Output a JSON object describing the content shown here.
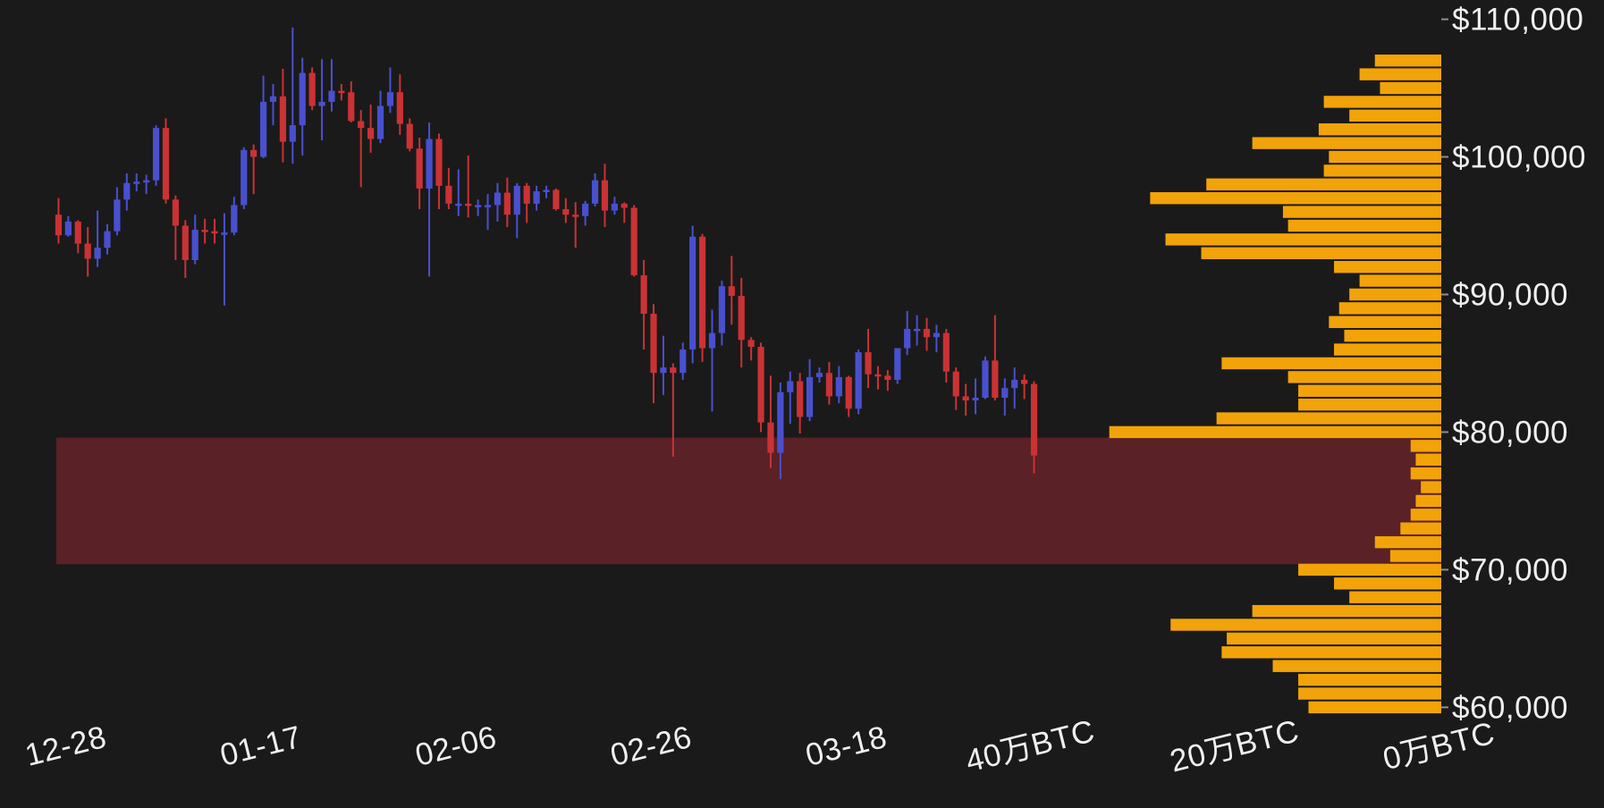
{
  "page": {
    "background": "#1a1a1a"
  },
  "chart_data": [
    {
      "type": "candlestick",
      "name": "BTC daily price candles",
      "columns": [
        "date",
        "open",
        "high",
        "low",
        "close"
      ],
      "up_color": "#4950cf",
      "down_color": "#cb3234",
      "y_axis": {
        "side": "right",
        "tick_labels": [
          "$110,000",
          "$100,000",
          "$90,000",
          "$80,000",
          "$70,000",
          "$60,000"
        ],
        "tick_values": [
          110000,
          100000,
          90000,
          80000,
          70000,
          60000
        ],
        "range": [
          59700,
          111400
        ]
      },
      "x_ticks": [
        {
          "index": 1,
          "label": "12-28"
        },
        {
          "index": 21,
          "label": "01-17"
        },
        {
          "index": 41,
          "label": "02-06"
        },
        {
          "index": 61,
          "label": "02-26"
        },
        {
          "index": 81,
          "label": "03-18"
        }
      ],
      "highlight_zone": {
        "price_from": 70400,
        "price_to": 79600,
        "color": "#5a2126"
      },
      "candles": [
        [
          "12-27",
          95800,
          97000,
          93700,
          94300
        ],
        [
          "12-28",
          94300,
          95700,
          94200,
          95300
        ],
        [
          "12-29",
          95300,
          95400,
          93000,
          93700
        ],
        [
          "12-30",
          93700,
          94900,
          91300,
          92600
        ],
        [
          "12-31",
          92600,
          96100,
          92000,
          93400
        ],
        [
          "01-01",
          93400,
          95100,
          92900,
          94600
        ],
        [
          "01-02",
          94600,
          97800,
          94300,
          96900
        ],
        [
          "01-03",
          96900,
          98800,
          96100,
          98100
        ],
        [
          "01-04",
          98100,
          98800,
          97500,
          98200
        ],
        [
          "01-05",
          98200,
          98700,
          97300,
          98300
        ],
        [
          "01-06",
          98300,
          102300,
          97900,
          102100
        ],
        [
          "01-07",
          102100,
          102800,
          96600,
          96900
        ],
        [
          "01-08",
          96900,
          97200,
          92500,
          95000
        ],
        [
          "01-09",
          95000,
          95400,
          91200,
          92500
        ],
        [
          "01-10",
          92500,
          95800,
          92200,
          94700
        ],
        [
          "01-11",
          94700,
          95500,
          93700,
          94600
        ],
        [
          "01-12",
          94600,
          95500,
          93700,
          94500
        ],
        [
          "01-13",
          94500,
          95900,
          89200,
          94500
        ],
        [
          "01-14",
          94500,
          97100,
          94300,
          96500
        ],
        [
          "01-15",
          96500,
          100700,
          96200,
          100500
        ],
        [
          "01-16",
          100500,
          100900,
          97300,
          100000
        ],
        [
          "01-17",
          100000,
          105900,
          99900,
          104000
        ],
        [
          "01-18",
          104000,
          105300,
          102300,
          104400
        ],
        [
          "01-19",
          104400,
          106400,
          99600,
          101100
        ],
        [
          "01-20",
          101100,
          109400,
          99500,
          102300
        ],
        [
          "01-21",
          102300,
          107200,
          100100,
          106100
        ],
        [
          "01-22",
          106100,
          106500,
          103400,
          103700
        ],
        [
          "01-23",
          103700,
          107100,
          101200,
          104000
        ],
        [
          "01-24",
          104000,
          107100,
          103300,
          104800
        ],
        [
          "01-25",
          104800,
          105300,
          104100,
          104700
        ],
        [
          "01-26",
          104700,
          105500,
          102500,
          102600
        ],
        [
          "01-27",
          102600,
          103400,
          97800,
          102100
        ],
        [
          "01-28",
          102100,
          103800,
          100300,
          101300
        ],
        [
          "01-29",
          101300,
          104800,
          101000,
          103700
        ],
        [
          "01-30",
          103700,
          106500,
          103200,
          104700
        ],
        [
          "01-31",
          104700,
          106000,
          101600,
          102400
        ],
        [
          "02-01",
          102400,
          102800,
          100400,
          100600
        ],
        [
          "02-02",
          100600,
          101400,
          96200,
          97700
        ],
        [
          "02-03",
          97700,
          102500,
          91300,
          101300
        ],
        [
          "02-04",
          101300,
          101700,
          96200,
          97900
        ],
        [
          "02-05",
          97900,
          99200,
          96200,
          96600
        ],
        [
          "02-06",
          96600,
          99100,
          95700,
          96600
        ],
        [
          "02-07",
          96600,
          100100,
          95600,
          96500
        ],
        [
          "02-08",
          96500,
          96900,
          95700,
          96500
        ],
        [
          "02-09",
          96500,
          97300,
          94700,
          96500
        ],
        [
          "02-10",
          96500,
          98100,
          95300,
          97400
        ],
        [
          "02-11",
          97400,
          98500,
          94900,
          95800
        ],
        [
          "02-12",
          95800,
          98100,
          94100,
          97900
        ],
        [
          "02-13",
          97900,
          98100,
          95200,
          96600
        ],
        [
          "02-14",
          96600,
          97900,
          96100,
          97500
        ],
        [
          "02-15",
          97500,
          97900,
          97000,
          97600
        ],
        [
          "02-16",
          97600,
          97700,
          96100,
          96200
        ],
        [
          "02-17",
          96200,
          97000,
          95200,
          95800
        ],
        [
          "02-18",
          95800,
          96700,
          93400,
          95700
        ],
        [
          "02-19",
          95700,
          96800,
          95000,
          96600
        ],
        [
          "02-20",
          96600,
          98800,
          96400,
          98300
        ],
        [
          "02-21",
          98300,
          99500,
          94900,
          96100
        ],
        [
          "02-22",
          96100,
          97100,
          95800,
          96600
        ],
        [
          "02-23",
          96600,
          96700,
          95200,
          96300
        ],
        [
          "02-24",
          96300,
          96500,
          91300,
          91400
        ],
        [
          "02-25",
          91400,
          92500,
          86000,
          88600
        ],
        [
          "02-26",
          88600,
          89300,
          82100,
          84300
        ],
        [
          "02-27",
          84300,
          87000,
          82700,
          84700
        ],
        [
          "02-28",
          84700,
          85000,
          78200,
          84300
        ],
        [
          "03-01",
          84300,
          86500,
          83800,
          86000
        ],
        [
          "03-02",
          86000,
          95000,
          85000,
          94200
        ],
        [
          "03-03",
          94200,
          94400,
          85100,
          86100
        ],
        [
          "03-04",
          86100,
          88900,
          81500,
          87200
        ],
        [
          "03-05",
          87200,
          91000,
          86300,
          90600
        ],
        [
          "03-06",
          90600,
          92800,
          87800,
          89900
        ],
        [
          "03-07",
          89900,
          91200,
          84700,
          86700
        ],
        [
          "03-08",
          86700,
          86900,
          85200,
          86200
        ],
        [
          "03-09",
          86200,
          86500,
          80000,
          80700
        ],
        [
          "03-10",
          80700,
          84100,
          77400,
          78500
        ],
        [
          "03-11",
          78500,
          83600,
          76600,
          82900
        ],
        [
          "03-12",
          82900,
          84400,
          80600,
          83700
        ],
        [
          "03-13",
          83700,
          84300,
          79900,
          81100
        ],
        [
          "03-14",
          81100,
          85300,
          80800,
          84000
        ],
        [
          "03-15",
          84000,
          84700,
          83600,
          84300
        ],
        [
          "03-16",
          84300,
          85100,
          82000,
          82600
        ],
        [
          "03-17",
          82600,
          84800,
          82100,
          84000
        ],
        [
          "03-18",
          84000,
          84100,
          81100,
          81700
        ],
        [
          "03-19",
          81700,
          86000,
          81300,
          85800
        ],
        [
          "03-20",
          85800,
          87500,
          83200,
          84200
        ],
        [
          "03-21",
          84200,
          84800,
          83100,
          84100
        ],
        [
          "03-22",
          84100,
          84500,
          83000,
          83800
        ],
        [
          "03-23",
          83800,
          86100,
          83500,
          86100
        ],
        [
          "03-24",
          86100,
          88800,
          85600,
          87500
        ],
        [
          "03-25",
          87500,
          88500,
          86300,
          87500
        ],
        [
          "03-26",
          87500,
          88300,
          85900,
          86900
        ],
        [
          "03-27",
          86900,
          87800,
          85800,
          87200
        ],
        [
          "03-28",
          87200,
          87500,
          83600,
          84400
        ],
        [
          "03-29",
          84400,
          84700,
          81600,
          82600
        ],
        [
          "03-30",
          82600,
          83500,
          81200,
          82300
        ],
        [
          "03-31",
          82300,
          83900,
          81300,
          82500
        ],
        [
          "04-01",
          82500,
          85500,
          82400,
          85200
        ],
        [
          "04-02",
          85200,
          88500,
          82300,
          82500
        ],
        [
          "04-03",
          82500,
          83900,
          81200,
          83200
        ],
        [
          "04-04",
          83200,
          84700,
          81700,
          83800
        ],
        [
          "04-05",
          83800,
          84200,
          82400,
          83500
        ],
        [
          "04-06",
          83500,
          83700,
          77000,
          78300
        ]
      ]
    },
    {
      "type": "bar",
      "name": "volume profile by price level",
      "orientation": "horizontal",
      "anchor": "right",
      "bar_color": "#f2a30a",
      "unit": "万BTC",
      "price_bucket_size": 1000,
      "x_axis": {
        "tick_labels": [
          "40万BTC",
          "20万BTC",
          "0万BTC"
        ],
        "tick_values": [
          40,
          20,
          0
        ]
      },
      "levels": [
        [
          107000,
          6.5
        ],
        [
          106000,
          8
        ],
        [
          105000,
          6
        ],
        [
          104000,
          11.5
        ],
        [
          103000,
          9
        ],
        [
          102000,
          12
        ],
        [
          101000,
          18.5
        ],
        [
          100000,
          11
        ],
        [
          99000,
          11.5
        ],
        [
          98000,
          23
        ],
        [
          97000,
          28.5
        ],
        [
          96000,
          15.5
        ],
        [
          95000,
          15
        ],
        [
          94000,
          27
        ],
        [
          93000,
          23.5
        ],
        [
          92000,
          10.5
        ],
        [
          91000,
          8
        ],
        [
          90000,
          9
        ],
        [
          89000,
          10
        ],
        [
          88000,
          11
        ],
        [
          87000,
          9.5
        ],
        [
          86000,
          10.5
        ],
        [
          85000,
          21.5
        ],
        [
          84000,
          15
        ],
        [
          83000,
          14
        ],
        [
          82000,
          14
        ],
        [
          81000,
          22
        ],
        [
          80000,
          32.5
        ],
        [
          79000,
          3
        ],
        [
          78000,
          2.5
        ],
        [
          77000,
          3
        ],
        [
          76000,
          2
        ],
        [
          75000,
          2.5
        ],
        [
          74000,
          3
        ],
        [
          73000,
          4
        ],
        [
          72000,
          6.5
        ],
        [
          71000,
          5
        ],
        [
          70000,
          14
        ],
        [
          69000,
          10.5
        ],
        [
          68000,
          9
        ],
        [
          67000,
          18.5
        ],
        [
          66000,
          26.5
        ],
        [
          65000,
          21
        ],
        [
          64000,
          21.5
        ],
        [
          63000,
          16.5
        ],
        [
          62000,
          14
        ],
        [
          61000,
          14
        ],
        [
          60000,
          13
        ]
      ]
    }
  ]
}
